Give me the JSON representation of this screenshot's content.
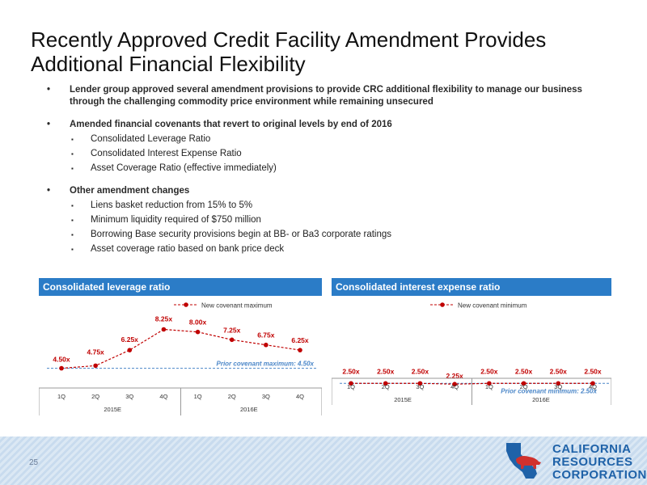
{
  "title_line1": "Recently Approved Credit Facility Amendment Provides",
  "title_line2": "Additional Financial Flexibility",
  "bullets": [
    {
      "text": "Lender group approved several amendment provisions to provide CRC additional flexibility to manage our business through the challenging commodity price environment while remaining unsecured",
      "sub": []
    },
    {
      "text": "Amended financial covenants that revert to original levels by end of 2016",
      "sub": [
        "Consolidated Leverage Ratio",
        "Consolidated Interest Expense Ratio",
        "Asset Coverage Ratio (effective immediately)"
      ]
    },
    {
      "text": "Other amendment changes",
      "sub": [
        "Liens basket reduction from 15% to 5%",
        "Minimum liquidity required of $750 million",
        "Borrowing Base security provisions begin at BB- or Ba3 corporate ratings",
        "Asset coverage ratio based on bank price deck"
      ]
    }
  ],
  "bullet_glyph": "•",
  "sub_glyph": "▪",
  "chart_data": [
    {
      "type": "line",
      "title": "Consolidated leverage ratio",
      "categories": [
        "1Q",
        "2Q",
        "3Q",
        "4Q",
        "1Q",
        "2Q",
        "3Q",
        "4Q"
      ],
      "groups": [
        "2015E",
        "2016E"
      ],
      "series": [
        {
          "name": "New covenant maximum",
          "values": [
            4.5,
            4.75,
            6.25,
            8.25,
            8.0,
            7.25,
            6.75,
            6.25
          ],
          "labels": [
            "4.50x",
            "4.75x",
            "6.25x",
            "8.25x",
            "8.00x",
            "7.25x",
            "6.75x",
            "6.25x"
          ]
        }
      ],
      "reference": {
        "label": "Prior covenant maximum: 4.50x",
        "value": 4.5
      },
      "ylim": [
        4.0,
        8.6
      ],
      "legend": "top",
      "colors": {
        "series": "#c00000",
        "reference": "#4a86c8"
      }
    },
    {
      "type": "line",
      "title": "Consolidated interest expense ratio",
      "categories": [
        "1Q",
        "2Q",
        "3Q",
        "4Q",
        "1Q",
        "2Q",
        "3Q",
        "4Q"
      ],
      "groups": [
        "2015E",
        "2016E"
      ],
      "series": [
        {
          "name": "New covenant minimum",
          "values": [
            2.5,
            2.5,
            2.5,
            2.25,
            2.5,
            2.5,
            2.5,
            2.5
          ],
          "labels": [
            "2.50x",
            "2.50x",
            "2.50x",
            "2.25x",
            "2.50x",
            "2.50x",
            "2.50x",
            "2.50x"
          ]
        }
      ],
      "reference": {
        "label": "Prior covenant minimum: 2.50x",
        "value": 2.5
      },
      "ylim": [
        0,
        20
      ],
      "legend": "top",
      "colors": {
        "series": "#c00000",
        "reference": "#4a86c8"
      }
    }
  ],
  "page_number": "25",
  "logo": {
    "line1": "CALIFORNIA",
    "line2": "RESOURCES",
    "line3": "CORPORATION",
    "color": "#1f62a8",
    "accent": "#d0312d"
  }
}
